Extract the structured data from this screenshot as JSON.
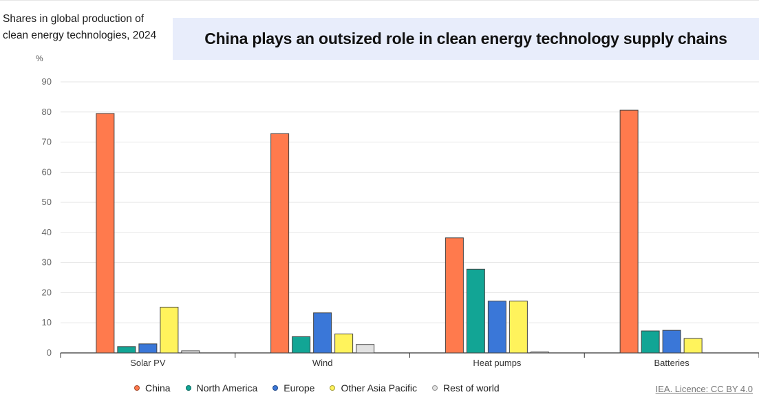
{
  "subtitle": "Shares in global production of clean energy technologies, 2024",
  "headline": "China plays an outsized role in clean energy technology supply chains",
  "unit_label": "%",
  "source": "IEA. Licence: CC BY 4.0",
  "chart_data": {
    "type": "bar",
    "categories": [
      "Solar PV",
      "Wind",
      "Heat pumps",
      "Batteries"
    ],
    "series": [
      {
        "name": "China",
        "color": "#ff7a4d",
        "values": [
          79.5,
          72.8,
          38.2,
          80.6
        ]
      },
      {
        "name": "North America",
        "color": "#12a595",
        "values": [
          2.1,
          5.4,
          27.8,
          7.3
        ]
      },
      {
        "name": "Europe",
        "color": "#3a77d8",
        "values": [
          3.0,
          13.3,
          17.2,
          7.5
        ]
      },
      {
        "name": "Other Asia Pacific",
        "color": "#fff35c",
        "values": [
          15.2,
          6.3,
          17.2,
          4.8
        ]
      },
      {
        "name": "Rest of world",
        "color": "#e2e2e2",
        "values": [
          0.7,
          2.8,
          0.3,
          0
        ]
      }
    ],
    "ylim": [
      0,
      90
    ],
    "yticks": [
      0,
      10,
      20,
      30,
      40,
      50,
      60,
      70,
      80,
      90
    ],
    "grid": true,
    "legend_position": "bottom"
  }
}
